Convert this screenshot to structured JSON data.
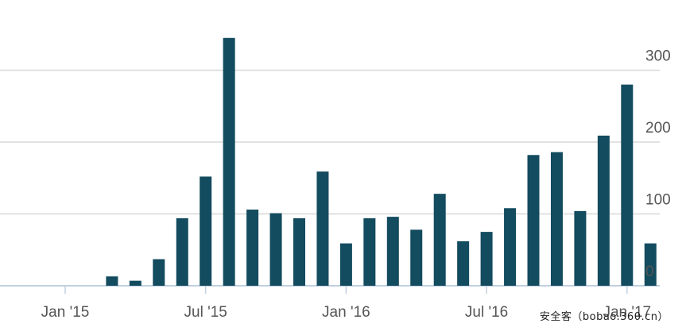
{
  "chart_data": {
    "type": "bar",
    "title": "",
    "xlabel": "",
    "ylabel": "",
    "ylim": [
      0,
      300
    ],
    "yticks": [
      "0",
      "100",
      "200",
      "300"
    ],
    "xticks": [
      {
        "label": "Jan '15",
        "x": "2015-01"
      },
      {
        "label": "Jul '15",
        "x": "2015-07"
      },
      {
        "label": "Jan '16",
        "x": "2016-01"
      },
      {
        "label": "Jul '16",
        "x": "2016-07"
      },
      {
        "label": "Jan '17",
        "x": "2017-01"
      }
    ],
    "categories": [
      "2015-03",
      "2015-04",
      "2015-05",
      "2015-06",
      "2015-07",
      "2015-08",
      "2015-09",
      "2015-10",
      "2015-11",
      "2015-12",
      "2016-01",
      "2016-02",
      "2016-03",
      "2016-04",
      "2016-05",
      "2016-06",
      "2016-07",
      "2016-08",
      "2016-09",
      "2016-10",
      "2016-11",
      "2016-12",
      "2017-01",
      "2017-02"
    ],
    "values": [
      13,
      7,
      37,
      94,
      152,
      345,
      106,
      101,
      94,
      159,
      59,
      94,
      96,
      78,
      128,
      62,
      75,
      108,
      182,
      186,
      104,
      209,
      280,
      59
    ],
    "grid": true,
    "bar_color": "#134B5F"
  },
  "watermark": "安全客（bobao.360.cn）"
}
